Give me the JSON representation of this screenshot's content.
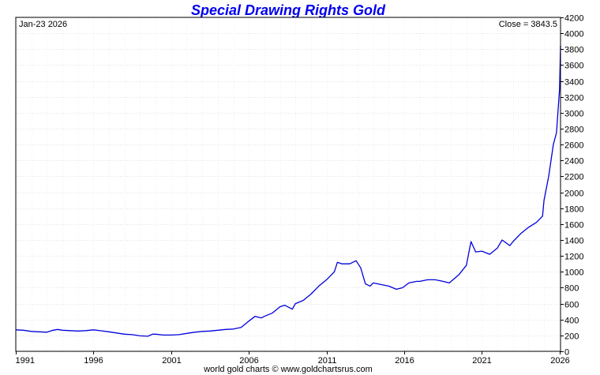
{
  "chart_data": {
    "type": "line",
    "title": "Special Drawing Rights Gold",
    "date_label": "Jan-23  2026",
    "close_label": "Close = 3843.5",
    "footer": "world gold charts © www.goldchartsrus.com",
    "xlim": [
      1991,
      2026.06
    ],
    "ylim": [
      0,
      4200
    ],
    "x_ticks": [
      1991,
      1996,
      2001,
      2006,
      2011,
      2016,
      2021,
      2026
    ],
    "y_ticks": [
      0,
      200,
      400,
      600,
      800,
      1000,
      1200,
      1400,
      1600,
      1800,
      2000,
      2200,
      2400,
      2600,
      2800,
      3000,
      3200,
      3400,
      3600,
      3800,
      4000,
      4200
    ],
    "grid": true,
    "y_axis_side": "right",
    "line_color": "#0000dd",
    "title_color": "#0000ee",
    "series": [
      {
        "x": [
          1991.0,
          1991.5,
          1992.0,
          1992.5,
          1993.0,
          1993.4,
          1993.7,
          1994.0,
          1994.5,
          1995.0,
          1995.5,
          1996.0,
          1996.5,
          1997.0,
          1997.5,
          1998.0,
          1998.5,
          1999.0,
          1999.5,
          1999.8,
          2000.0,
          2000.5,
          2001.0,
          2001.5,
          2002.0,
          2002.5,
          2003.0,
          2003.5,
          2004.0,
          2004.5,
          2005.0,
          2005.5,
          2006.0,
          2006.4,
          2006.8,
          2007.0,
          2007.5,
          2008.0,
          2008.3,
          2008.8,
          2009.0,
          2009.5,
          2010.0,
          2010.5,
          2011.0,
          2011.5,
          2011.7,
          2012.0,
          2012.5,
          2012.9,
          2013.2,
          2013.5,
          2013.8,
          2014.0,
          2014.5,
          2015.0,
          2015.5,
          2015.9,
          2016.3,
          2016.8,
          2017.0,
          2017.5,
          2018.0,
          2018.5,
          2018.9,
          2019.5,
          2020.0,
          2020.3,
          2020.6,
          2021.0,
          2021.5,
          2022.0,
          2022.3,
          2022.8,
          2023.0,
          2023.5,
          2024.0,
          2024.5,
          2024.9,
          2025.0,
          2025.3,
          2025.6,
          2025.8,
          2026.0,
          2026.06
        ],
        "y": [
          270,
          265,
          250,
          245,
          240,
          265,
          275,
          265,
          260,
          255,
          260,
          270,
          258,
          245,
          230,
          215,
          210,
          195,
          190,
          215,
          215,
          205,
          205,
          210,
          225,
          240,
          250,
          255,
          265,
          275,
          280,
          300,
          380,
          440,
          420,
          440,
          480,
          560,
          580,
          530,
          600,
          640,
          720,
          820,
          900,
          1000,
          1120,
          1100,
          1100,
          1140,
          1050,
          850,
          820,
          860,
          840,
          820,
          780,
          800,
          860,
          880,
          880,
          900,
          900,
          880,
          860,
          960,
          1080,
          1380,
          1250,
          1260,
          1220,
          1300,
          1400,
          1330,
          1380,
          1480,
          1560,
          1620,
          1700,
          1900,
          2200,
          2600,
          2750,
          3300,
          3843.5
        ]
      }
    ]
  }
}
